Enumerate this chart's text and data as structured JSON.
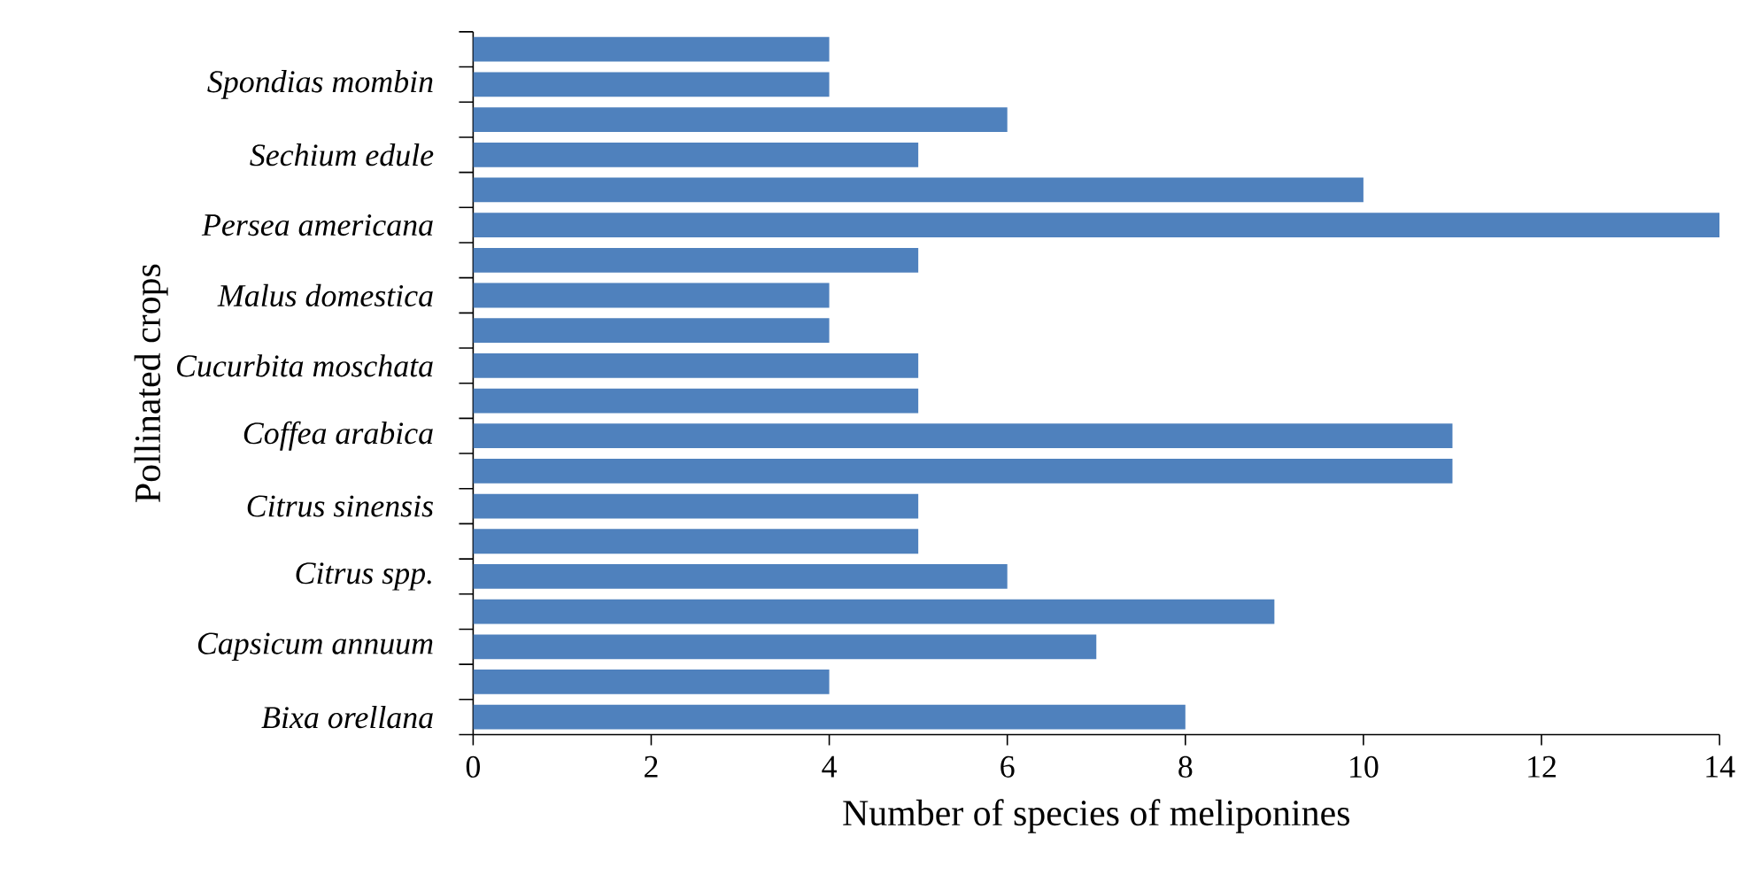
{
  "chart_data": {
    "type": "bar",
    "orientation": "horizontal",
    "xlabel": "Number of species of meliponines",
    "ylabel": "Pollinated crops",
    "categories": [
      null,
      "Spondias mombin",
      null,
      "Sechium edule",
      null,
      "Persea americana",
      null,
      "Malus domestica",
      null,
      "Cucurbita moschata",
      null,
      "Coffea arabica",
      null,
      "Citrus sinensis",
      null,
      "Citrus spp.",
      null,
      "Capsicum annuum",
      null,
      "Bixa orellana"
    ],
    "values": [
      4,
      4,
      6,
      5,
      10,
      14,
      5,
      4,
      4,
      5,
      5,
      11,
      11,
      5,
      5,
      6,
      9,
      7,
      4,
      8
    ],
    "color": "#4f81bd",
    "xlim": [
      0,
      14
    ],
    "xticks": [
      0,
      2,
      4,
      6,
      8,
      10,
      12,
      14
    ]
  }
}
